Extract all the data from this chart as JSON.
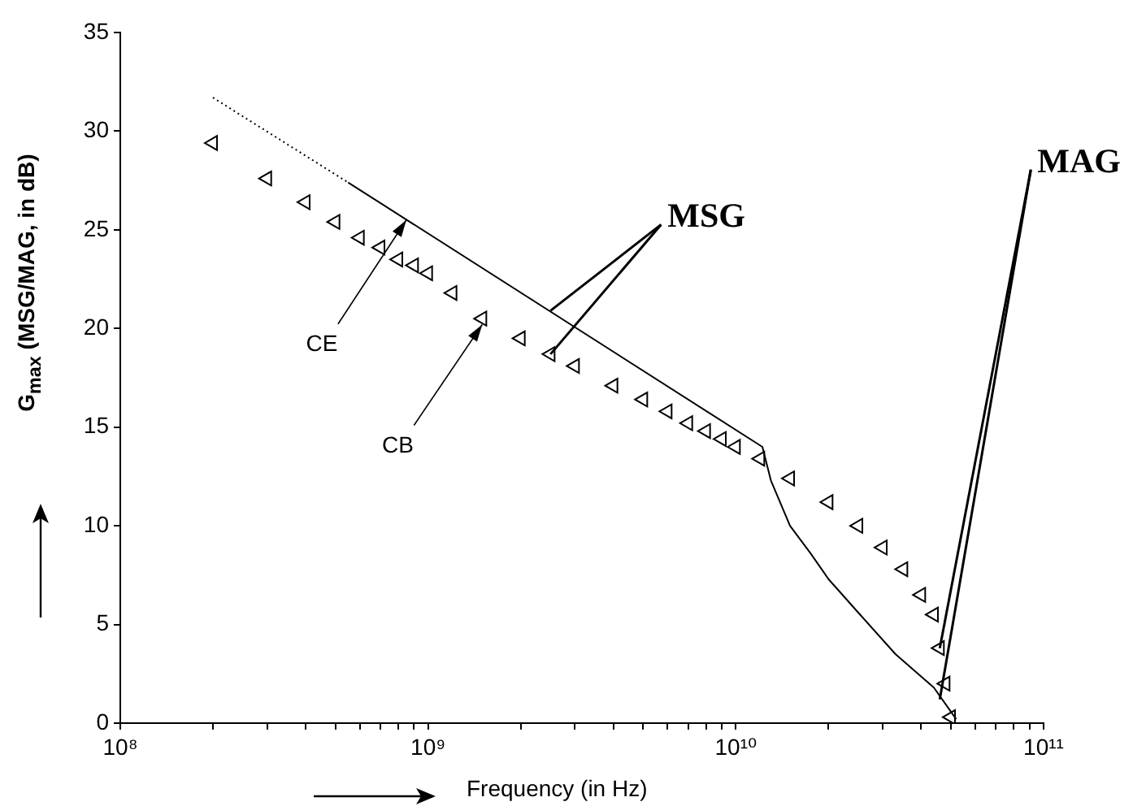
{
  "chart_data": {
    "type": "line",
    "xlabel": "Frequency (in Hz)",
    "ylabel": "G$_{max}$ (MSG/MAG, in dB)",
    "log": "x",
    "xlim": [
      100000000,
      100000000000
    ],
    "ylim": [
      0,
      35
    ],
    "xticks": [
      {
        "value": 100000000,
        "label": "10⁸"
      },
      {
        "value": 200000000,
        "label": null
      },
      {
        "value": 300000000,
        "label": null
      },
      {
        "value": 400000000,
        "label": null
      },
      {
        "value": 500000000,
        "label": null
      },
      {
        "value": 600000000,
        "label": null
      },
      {
        "value": 700000000,
        "label": null
      },
      {
        "value": 800000000,
        "label": null
      },
      {
        "value": 900000000,
        "label": null
      },
      {
        "value": 1000000000,
        "label": "10⁹"
      },
      {
        "value": 2000000000,
        "label": null
      },
      {
        "value": 3000000000,
        "label": null
      },
      {
        "value": 4000000000,
        "label": null
      },
      {
        "value": 5000000000,
        "label": null
      },
      {
        "value": 6000000000,
        "label": null
      },
      {
        "value": 7000000000,
        "label": null
      },
      {
        "value": 8000000000,
        "label": null
      },
      {
        "value": 9000000000,
        "label": null
      },
      {
        "value": 10000000000,
        "label": "10¹⁰"
      },
      {
        "value": 20000000000,
        "label": null
      },
      {
        "value": 30000000000,
        "label": null
      },
      {
        "value": 40000000000,
        "label": null
      },
      {
        "value": 50000000000,
        "label": null
      },
      {
        "value": 60000000000,
        "label": null
      },
      {
        "value": 70000000000,
        "label": null
      },
      {
        "value": 80000000000,
        "label": null
      },
      {
        "value": 90000000000,
        "label": null
      },
      {
        "value": 100000000000,
        "label": "10¹¹"
      }
    ],
    "yticks": [
      0,
      5,
      10,
      15,
      20,
      25,
      30,
      35
    ],
    "series": [
      {
        "line_style": "dotted",
        "marker": "none",
        "color": "#000000",
        "x": [
          200000000,
          550000000
        ],
        "values": [
          31.7,
          27.4
        ]
      },
      {
        "line_style": "solid",
        "marker": "none",
        "color": "#000000",
        "x": [
          550000000,
          12200000000,
          13000000000,
          15000000000,
          17500000000,
          20000000000,
          25000000000,
          33000000000,
          44000000000,
          52000000000
        ],
        "values": [
          27.4,
          14.0,
          12.3,
          10.0,
          8.6,
          7.3,
          5.6,
          3.5,
          1.8,
          0.2
        ]
      },
      {
        "type": "scatter",
        "marker": "triangle",
        "color": "#000000",
        "x": [
          200000000,
          300000000,
          400000000,
          500000000,
          600000000,
          700000000,
          800000000,
          900000000,
          1000000000,
          1200000000,
          1500000000,
          2000000000,
          2500000000,
          3000000000,
          4000000000,
          5000000000,
          6000000000,
          7000000000,
          8000000000,
          9000000000,
          10000000000,
          12000000000,
          15000000000,
          20000000000,
          25000000000,
          30000000000,
          35000000000,
          40000000000,
          44000000000,
          46000000000,
          48000000000,
          50000000000
        ],
        "values": [
          29.4,
          27.6,
          26.4,
          25.4,
          24.6,
          24.1,
          23.5,
          23.2,
          22.8,
          21.8,
          20.5,
          19.5,
          18.7,
          18.1,
          17.1,
          16.4,
          15.8,
          15.2,
          14.8,
          14.4,
          14.0,
          13.4,
          12.4,
          11.2,
          10.0,
          8.9,
          7.8,
          6.5,
          5.5,
          3.8,
          2.0,
          0.3
        ]
      }
    ],
    "annotations": [
      {
        "text": "CE",
        "x": 850000000,
        "y": 25.5
      },
      {
        "text": "CB",
        "x": 1500000000,
        "y": 20.2
      },
      {
        "text": "MSG",
        "x": 2500000000,
        "y": 20.9
      },
      {
        "text": "MAG",
        "x": 46000000000,
        "y": 1.2
      }
    ]
  }
}
